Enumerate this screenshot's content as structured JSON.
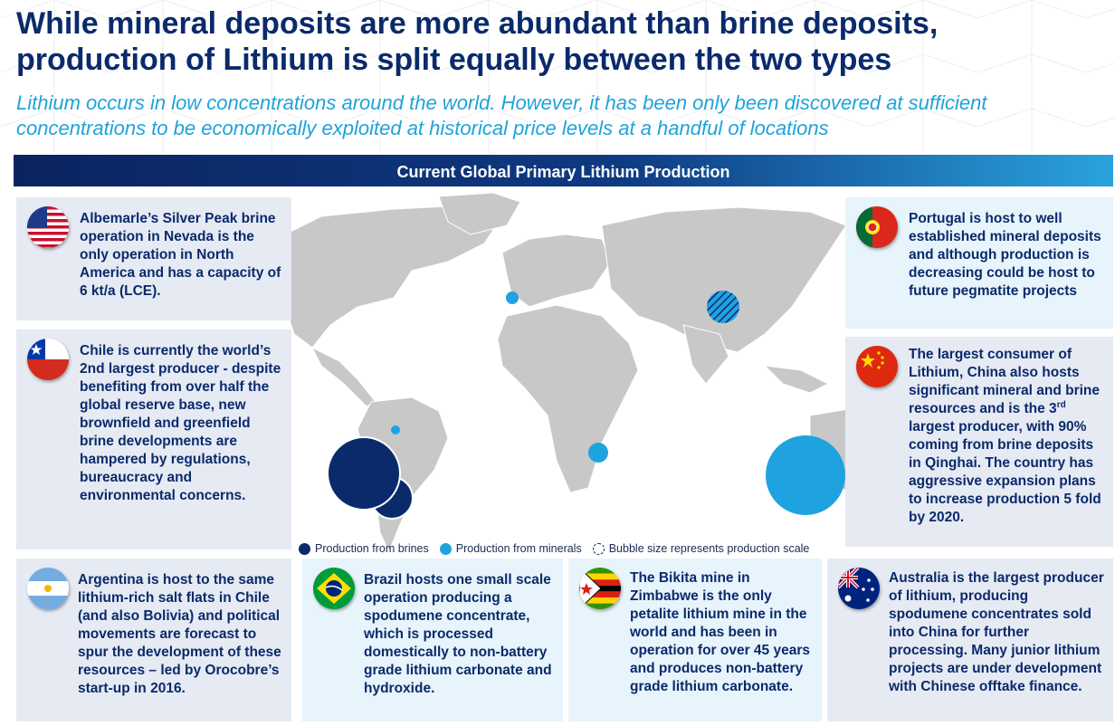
{
  "header": {
    "title": "While mineral deposits are more abundant than brine deposits, production of Lithium is split equally between the two types",
    "subtitle": "Lithium occurs in low concentrations around the world. However, it has been only been discovered at sufficient concentrations to be economically exploited at historical price levels at a handful of locations"
  },
  "banner": {
    "label": "Current Global Primary Lithium Production"
  },
  "colors": {
    "brine": "#0a2a6b",
    "minerals": "#1fa3e0",
    "land": "#c8c8c8",
    "panel_dark": "#e6eaf3",
    "panel_light": "#e8f4fb"
  },
  "panels": {
    "usa": {
      "flag": "usa-flag-icon",
      "text": "Albemarle’s Silver Peak brine operation in Nevada is the only operation in North America and has a capacity of 6 kt/a (LCE)."
    },
    "chile": {
      "flag": "chile-flag-icon",
      "text": "Chile is currently the world’s 2nd largest producer - despite benefiting from over half the global reserve base, new brownfield and greenfield brine developments are hampered by regulations, bureaucracy and environmental concerns."
    },
    "portugal": {
      "flag": "portugal-flag-icon",
      "text": "Portugal is host to well established mineral deposits and although production is decreasing could be host to future pegmatite projects"
    },
    "china": {
      "flag": "china-flag-icon",
      "text_part1": "The largest consumer of Lithium, China also hosts significant mineral and brine resources and is the 3",
      "text_sup": "rd",
      "text_part2": " largest producer, with 90% coming from brine deposits in Qinghai. The country has aggressive expansion plans to increase production 5 fold by 2020."
    },
    "argentina": {
      "flag": "argentina-flag-icon",
      "text": "Argentina is host to the same lithium-rich salt flats in Chile (and also Bolivia) and political movements are forecast to spur the development of these resources – led by Orocobre’s start-up in 2016."
    },
    "brazil": {
      "flag": "brazil-flag-icon",
      "text": "Brazil hosts one small scale operation producing a spodumene concentrate, which is processed domestically to non-battery grade lithium carbonate and hydroxide."
    },
    "zimbabwe": {
      "flag": "zimbabwe-flag-icon",
      "text": "The Bikita mine in Zimbabwe is the only petalite lithium mine in the world and has been in operation for over 45 years and produces non-battery grade lithium carbonate."
    },
    "australia": {
      "flag": "australia-flag-icon",
      "text": "Australia is the largest producer of lithium, producing spodumene concentrates sold into China for further processing. Many junior lithium projects are under development with Chinese offtake finance."
    }
  },
  "legend": {
    "brines": "Production from brines",
    "minerals": "Production from minerals",
    "scale": "Bubble size represents production scale"
  },
  "bubbles": [
    {
      "name": "usa",
      "type": "brine"
    },
    {
      "name": "portugal",
      "type": "minerals"
    },
    {
      "name": "china",
      "type": "mixed"
    },
    {
      "name": "brazil",
      "type": "minerals"
    },
    {
      "name": "chile",
      "type": "brine"
    },
    {
      "name": "argentina",
      "type": "brine"
    },
    {
      "name": "zimbabwe",
      "type": "minerals"
    },
    {
      "name": "australia",
      "type": "minerals"
    }
  ]
}
